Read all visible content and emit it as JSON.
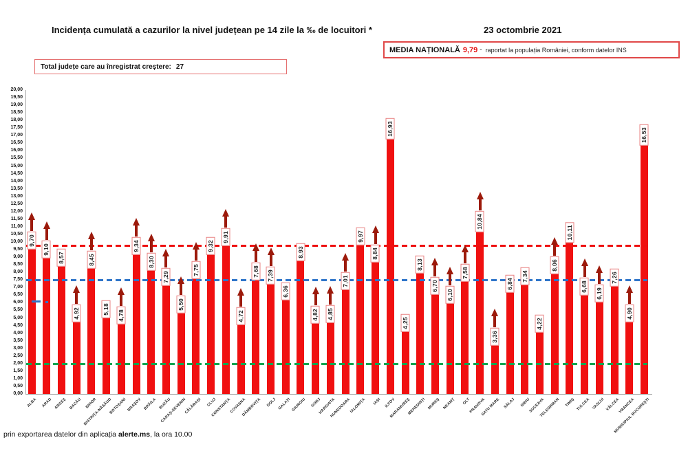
{
  "header": {
    "title": "Incidența cumulată a cazurilor la nivel județean pe 14 zile la ‰ de locuitori *",
    "date": "23 octombrie 2021",
    "media_box": {
      "label": "MEDIA NAȚIONALĂ",
      "value": "9,79",
      "dash": "-",
      "suffix": "raportat la populația României, conform datelor INS"
    },
    "total_box": {
      "text": "Total județe care au înregistrat creștere:",
      "count": "27"
    }
  },
  "footer": {
    "prefix": "prin exportarea datelor din aplicația ",
    "bold": "alerte.ms",
    "suffix": ", la ora 10.00"
  },
  "chart_data": {
    "type": "bar",
    "title": "Incidența cumulată a cazurilor la nivel județean pe 14 zile la ‰ de locuitori *",
    "xlabel": "",
    "ylabel": "",
    "ylim": [
      0,
      20
    ],
    "ytick_step": 0.5,
    "grid": false,
    "bar_color": "#f01010",
    "arrow_color": "#9c1a0b",
    "categories": [
      "ALBA",
      "ARAD",
      "ARGEȘ",
      "BACĂU",
      "BIHOR",
      "BISTRIȚA-NĂSĂUD",
      "BOTOȘANI",
      "BRAȘOV",
      "BRĂILA",
      "BUZĂU",
      "CARAȘ-SEVERIN",
      "CĂLĂRAȘI",
      "CLUJ",
      "CONSTANȚA",
      "COVASNA",
      "DÂMBOVIȚA",
      "DOLJ",
      "GALAȚI",
      "GIURGIU",
      "GORJ",
      "HARGHITA",
      "HUNEDOARA",
      "IALOMIȚA",
      "IAȘI",
      "ILFOV",
      "MARAMUREȘ",
      "MEHEDINȚI",
      "MUREȘ",
      "NEAMȚ",
      "OLT",
      "PRAHOVA",
      "SATU MARE",
      "SĂLAJ",
      "SIBIU",
      "SUCEAVA",
      "TELEORMAN",
      "TIMIȘ",
      "TULCEA",
      "VASLUI",
      "VÂLCEA",
      "VRANCEA",
      "MUNICIPIUL BUCUREȘTI"
    ],
    "values": [
      9.7,
      9.1,
      8.57,
      4.92,
      8.45,
      5.18,
      4.78,
      9.34,
      8.3,
      7.29,
      5.5,
      7.75,
      9.32,
      9.91,
      4.72,
      7.68,
      7.39,
      6.36,
      8.93,
      4.82,
      4.85,
      7.01,
      9.97,
      8.84,
      16.93,
      4.25,
      8.13,
      6.7,
      6.1,
      7.58,
      10.84,
      3.36,
      6.84,
      7.34,
      4.22,
      8.06,
      10.11,
      6.68,
      6.19,
      7.26,
      4.9,
      16.53
    ],
    "value_labels": [
      "9,70",
      "9,10",
      "8,57",
      "4,92",
      "8,45",
      "5,18",
      "4,78",
      "9,34",
      "8,30",
      "7,29",
      "5,50",
      "7,75",
      "9,32",
      "9,91",
      "4,72",
      "7,68",
      "7,39",
      "6,36",
      "8,93",
      "4,82",
      "4,85",
      "7,01",
      "9,97",
      "8,84",
      "16,93",
      "4,25",
      "8,13",
      "6,70",
      "6,10",
      "7,58",
      "10,84",
      "3,36",
      "6,84",
      "7,34",
      "4,22",
      "8,06",
      "10,11",
      "6,68",
      "6,19",
      "7,26",
      "4,90",
      "16,53"
    ],
    "increase_arrows": [
      true,
      true,
      false,
      true,
      true,
      false,
      true,
      true,
      true,
      true,
      true,
      true,
      false,
      true,
      true,
      true,
      true,
      false,
      false,
      true,
      true,
      true,
      false,
      true,
      false,
      false,
      false,
      true,
      true,
      true,
      true,
      true,
      false,
      false,
      false,
      true,
      false,
      true,
      true,
      false,
      true,
      false
    ],
    "reference_lines": [
      {
        "value": 9.79,
        "color": "#ee0f0f",
        "style": "dashed"
      },
      {
        "value": 7.5,
        "color": "#2e75c9",
        "style": "dashed"
      },
      {
        "value": 2.0,
        "color": "#00a651",
        "style": "dashed"
      }
    ],
    "legend": "none"
  }
}
